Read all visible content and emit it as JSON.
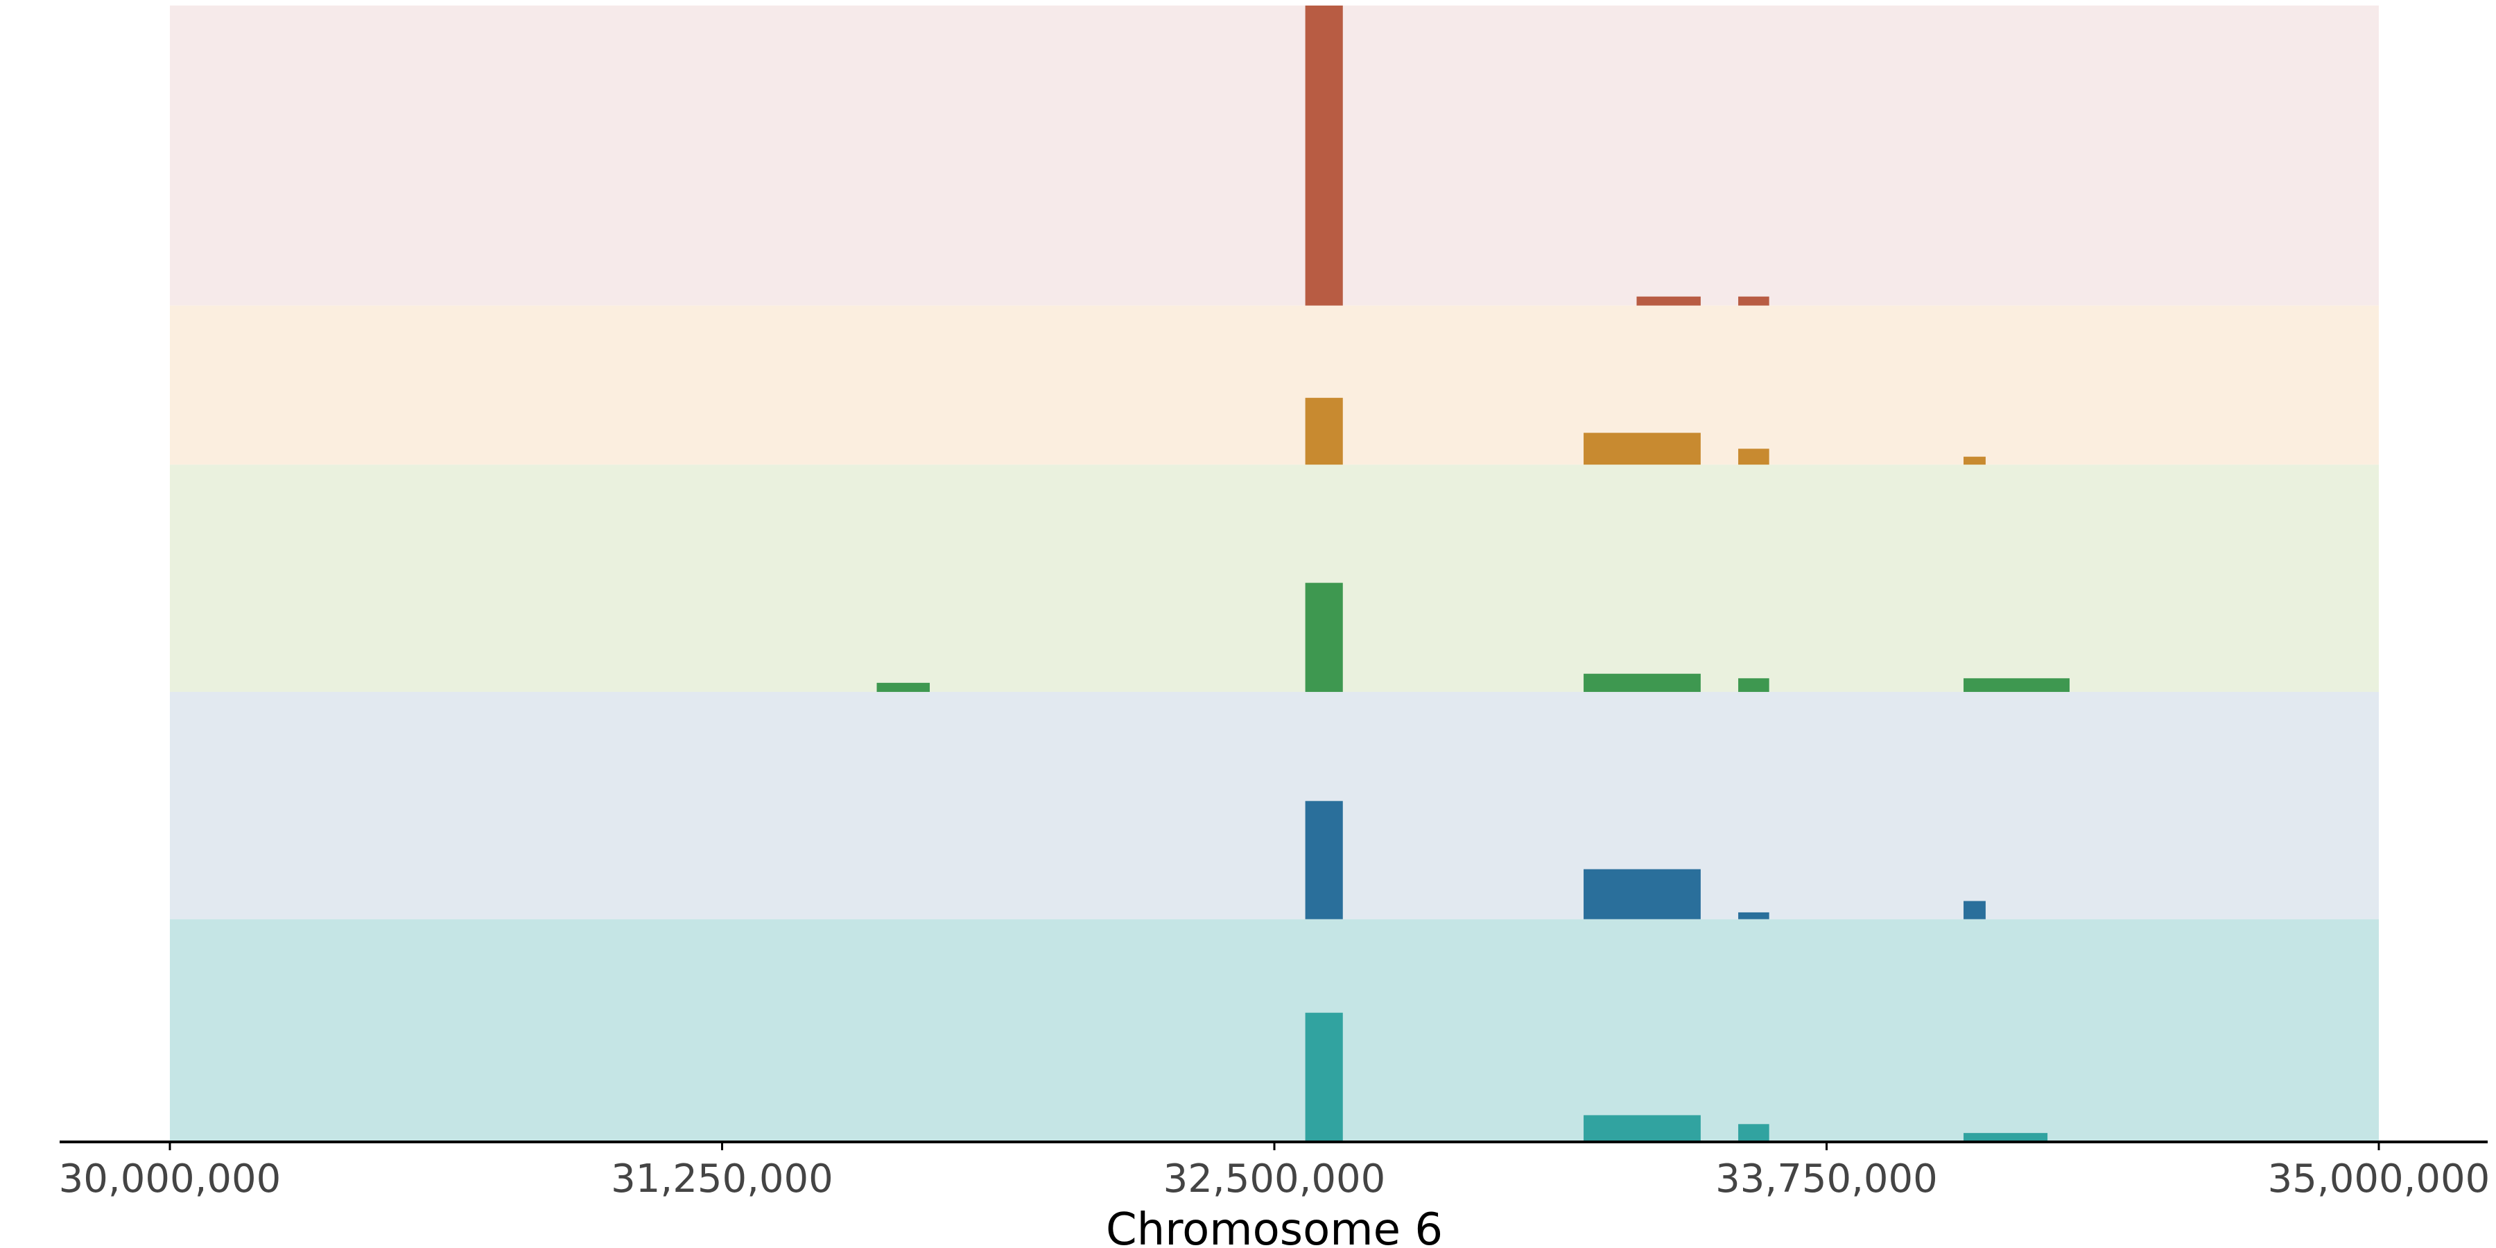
{
  "chart_data": {
    "type": "bar",
    "xlabel": "Chromosome 6",
    "ylabel": "",
    "title": "",
    "xlim": [
      30000000,
      35000000
    ],
    "x_ticks": [
      30000000,
      31250000,
      32500000,
      33750000,
      35000000
    ],
    "x_tick_labels": [
      "30,000,000",
      "31,250,000",
      "32,500,000",
      "33,750,000",
      "35,000,000"
    ],
    "grid": false,
    "legend": "none",
    "bands": [
      {
        "color": "#b85c43",
        "background": "#f6eaea",
        "height_fraction": 0.264,
        "segments": [
          {
            "start": 32570000,
            "end": 32655000,
            "fill": 1.0
          },
          {
            "start": 33320000,
            "end": 33465000,
            "fill": 0.03
          },
          {
            "start": 33550000,
            "end": 33620000,
            "fill": 0.03
          }
        ]
      },
      {
        "color": "#c88a30",
        "background": "#fbeedf",
        "height_fraction": 0.14,
        "segments": [
          {
            "start": 32570000,
            "end": 32655000,
            "fill": 0.42
          },
          {
            "start": 33200000,
            "end": 33465000,
            "fill": 0.2
          },
          {
            "start": 33550000,
            "end": 33620000,
            "fill": 0.1
          },
          {
            "start": 34060000,
            "end": 34110000,
            "fill": 0.05
          }
        ]
      },
      {
        "color": "#3e9850",
        "background": "#eaf1de",
        "height_fraction": 0.2,
        "segments": [
          {
            "start": 31600000,
            "end": 31720000,
            "fill": 0.04
          },
          {
            "start": 32570000,
            "end": 32655000,
            "fill": 0.48
          },
          {
            "start": 33200000,
            "end": 33465000,
            "fill": 0.08
          },
          {
            "start": 33550000,
            "end": 33620000,
            "fill": 0.06
          },
          {
            "start": 34060000,
            "end": 34300000,
            "fill": 0.06
          }
        ]
      },
      {
        "color": "#2a6f9b",
        "background": "#e2e9f0",
        "height_fraction": 0.2,
        "segments": [
          {
            "start": 32570000,
            "end": 32655000,
            "fill": 0.52
          },
          {
            "start": 33200000,
            "end": 33465000,
            "fill": 0.22
          },
          {
            "start": 33550000,
            "end": 33620000,
            "fill": 0.03
          },
          {
            "start": 34060000,
            "end": 34110000,
            "fill": 0.08
          }
        ]
      },
      {
        "color": "#31a3a0",
        "background": "#c5e5e5",
        "height_fraction": 0.196,
        "segments": [
          {
            "start": 32570000,
            "end": 32655000,
            "fill": 0.58
          },
          {
            "start": 33200000,
            "end": 33465000,
            "fill": 0.12
          },
          {
            "start": 33550000,
            "end": 33620000,
            "fill": 0.08
          },
          {
            "start": 34060000,
            "end": 34250000,
            "fill": 0.04
          }
        ]
      }
    ]
  }
}
